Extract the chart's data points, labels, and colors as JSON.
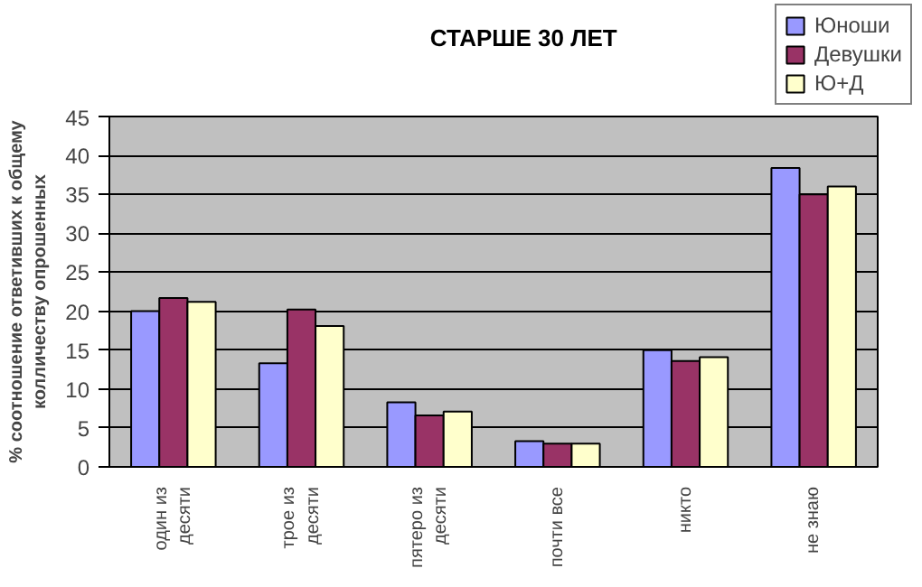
{
  "chart_data": {
    "type": "bar",
    "title": "СТАРШЕ 30 ЛЕТ",
    "ylabel": "% соотношение ответивших к общему\nколличеству опрошенных",
    "categories": [
      "один из\nдесяти",
      "трое из\nдесяти",
      "пятеро из\nдесяти",
      "почти все",
      "никто",
      "не знаю"
    ],
    "series": [
      {
        "name": "Юноши",
        "color": "#9999ff",
        "values": [
          20,
          13.3,
          8.3,
          3.3,
          15,
          38.4
        ]
      },
      {
        "name": "Девушки",
        "color": "#993366",
        "values": [
          21.7,
          20.2,
          6.6,
          3.0,
          13.6,
          35
        ]
      },
      {
        "name": "Ю+Д",
        "color": "#ffffcc",
        "values": [
          21.2,
          18.1,
          7.1,
          3.0,
          14.1,
          36
        ]
      }
    ],
    "ylim": [
      0,
      45
    ],
    "yticks": [
      0,
      5,
      10,
      15,
      20,
      25,
      30,
      35,
      40,
      45
    ],
    "grid": "y",
    "legend": "top right"
  }
}
